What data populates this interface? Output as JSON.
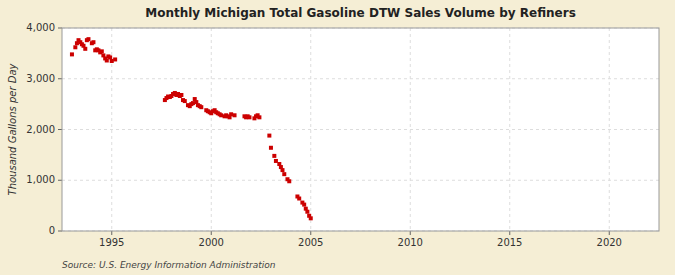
{
  "chart_data": {
    "type": "scatter",
    "title": "Monthly Michigan Total Gasoline DTW Sales Volume by Refiners",
    "ylabel": "Thousand Gallons per Day",
    "annotation": "Source: U.S. Energy Information Administration",
    "color": "#cc0000",
    "marker": "square",
    "grid": true,
    "xlim": [
      1992.5,
      2022.5
    ],
    "ylim": [
      0,
      4000
    ],
    "xticks": [
      1995,
      2000,
      2005,
      2010,
      2015,
      2020
    ],
    "yticks": [
      0,
      {
        "value": 1000,
        "label": "1,000"
      },
      {
        "value": 2000,
        "label": "2,000"
      },
      {
        "value": 3000,
        "label": "3,000"
      },
      {
        "value": 4000,
        "label": "4,000"
      }
    ],
    "x": [
      1993.0,
      1993.17,
      1993.25,
      1993.33,
      1993.42,
      1993.5,
      1993.58,
      1993.67,
      1993.75,
      1993.83,
      1994.0,
      1994.08,
      1994.17,
      1994.25,
      1994.33,
      1994.42,
      1994.5,
      1994.58,
      1994.67,
      1994.75,
      1994.83,
      1994.92,
      1995.0,
      1995.17,
      1997.67,
      1997.75,
      1997.83,
      1997.92,
      1998.0,
      1998.08,
      1998.17,
      1998.25,
      1998.33,
      1998.42,
      1998.5,
      1998.58,
      1998.67,
      1998.83,
      1998.92,
      1999.0,
      1999.08,
      1999.17,
      1999.25,
      1999.33,
      1999.42,
      1999.5,
      1999.75,
      1999.83,
      1999.92,
      2000.0,
      2000.08,
      2000.17,
      2000.25,
      2000.33,
      2000.42,
      2000.5,
      2000.67,
      2000.75,
      2000.83,
      2000.92,
      2001.0,
      2001.17,
      2001.67,
      2001.75,
      2001.83,
      2001.92,
      2002.17,
      2002.25,
      2002.33,
      2002.42,
      2002.92,
      2003.0,
      2003.17,
      2003.25,
      2003.42,
      2003.5,
      2003.58,
      2003.67,
      2003.83,
      2003.92,
      2004.33,
      2004.42,
      2004.58,
      2004.67,
      2004.75,
      2004.83,
      2004.92,
      2005.0
    ],
    "values": [
      3480,
      3620,
      3700,
      3760,
      3720,
      3680,
      3650,
      3590,
      3760,
      3780,
      3700,
      3720,
      3560,
      3580,
      3560,
      3520,
      3540,
      3460,
      3400,
      3360,
      3440,
      3420,
      3350,
      3380,
      2580,
      2620,
      2650,
      2640,
      2660,
      2700,
      2720,
      2680,
      2700,
      2660,
      2680,
      2580,
      2560,
      2480,
      2460,
      2500,
      2520,
      2600,
      2540,
      2480,
      2460,
      2440,
      2380,
      2360,
      2340,
      2320,
      2360,
      2380,
      2340,
      2320,
      2300,
      2280,
      2260,
      2280,
      2260,
      2240,
      2300,
      2280,
      2260,
      2240,
      2260,
      2240,
      2220,
      2260,
      2280,
      2240,
      1880,
      1640,
      1480,
      1380,
      1320,
      1260,
      1200,
      1120,
      1020,
      980,
      680,
      640,
      560,
      520,
      440,
      380,
      300,
      250
    ]
  }
}
